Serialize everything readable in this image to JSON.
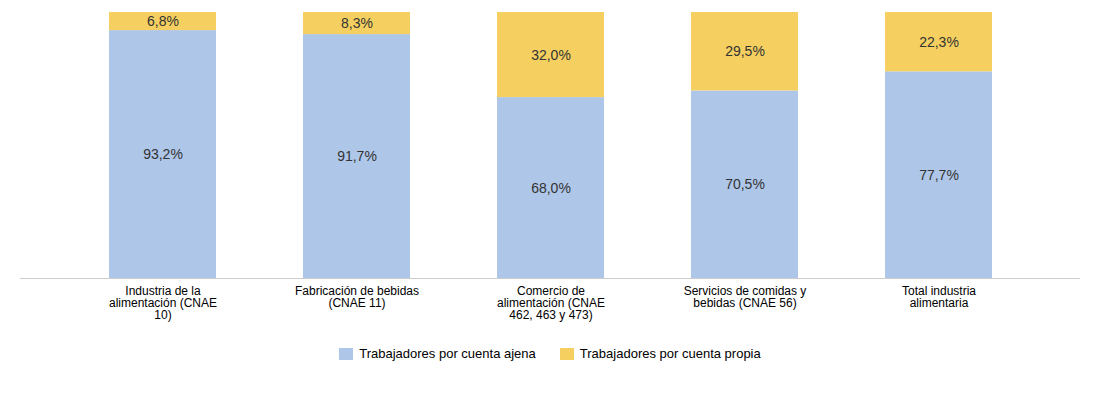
{
  "chart_data": {
    "type": "bar",
    "stacked": true,
    "categories": [
      "Industria de la\nalimentación (CNAE\n10)",
      "Fabricación de bebidas\n(CNAE 11)",
      "Comercio de\nalimentación (CNAE\n462, 463 y 473)",
      "Servicios de comidas y\nbebidas (CNAE 56)",
      "Total industria\nalimentaria"
    ],
    "series": [
      {
        "name": "Trabajadores por cuenta ajena",
        "color": "#aec6e8",
        "values": [
          93.2,
          91.7,
          68.0,
          70.5,
          77.7
        ],
        "value_labels": [
          "93,2%",
          "91,7%",
          "68,0%",
          "70,5%",
          "77,7%"
        ]
      },
      {
        "name": "Trabajadores por cuenta propia",
        "color": "#f5d060",
        "values": [
          6.8,
          8.3,
          32.0,
          29.5,
          22.3
        ],
        "value_labels": [
          "6,8%",
          "8,3%",
          "32,0%",
          "29,5%",
          "22,3%"
        ]
      }
    ],
    "ylim": [
      0,
      100
    ],
    "data_labels": true,
    "tick_labels": "x",
    "grid": false,
    "legend": "bottom"
  }
}
